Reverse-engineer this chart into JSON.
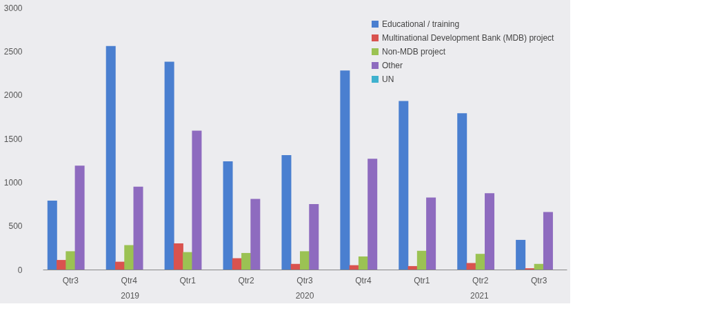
{
  "chart_data": {
    "type": "bar",
    "categories": [
      "Qtr3",
      "Qtr4",
      "Qtr1",
      "Qtr2",
      "Qtr3",
      "Qtr4",
      "Qtr1",
      "Qtr2",
      "Qtr3"
    ],
    "series": [
      {
        "name": "Educational / training",
        "color": "#4a7fd0",
        "values": [
          790,
          2560,
          2380,
          1240,
          1310,
          2280,
          1930,
          1790,
          340
        ]
      },
      {
        "name": "Multinational Development Bank (MDB) project",
        "color": "#d9534f",
        "values": [
          110,
          90,
          300,
          130,
          65,
          50,
          40,
          75,
          15
        ]
      },
      {
        "name": "Non-MDB project",
        "color": "#9bc253",
        "values": [
          210,
          280,
          200,
          190,
          210,
          150,
          215,
          180,
          65
        ]
      },
      {
        "name": "Other",
        "color": "#8e6bbf",
        "values": [
          1190,
          950,
          1590,
          810,
          750,
          1270,
          825,
          875,
          660
        ]
      },
      {
        "name": "UN",
        "color": "#3fb1ce",
        "values": [
          null,
          null,
          null,
          null,
          null,
          null,
          null,
          null,
          null
        ]
      }
    ],
    "ylim": [
      0,
      3000
    ],
    "yticks": [
      0,
      500,
      1000,
      1500,
      2000,
      2500,
      3000
    ],
    "grid": false,
    "legend": "top right",
    "annotations": [
      "2019",
      "2020",
      "2021"
    ]
  }
}
